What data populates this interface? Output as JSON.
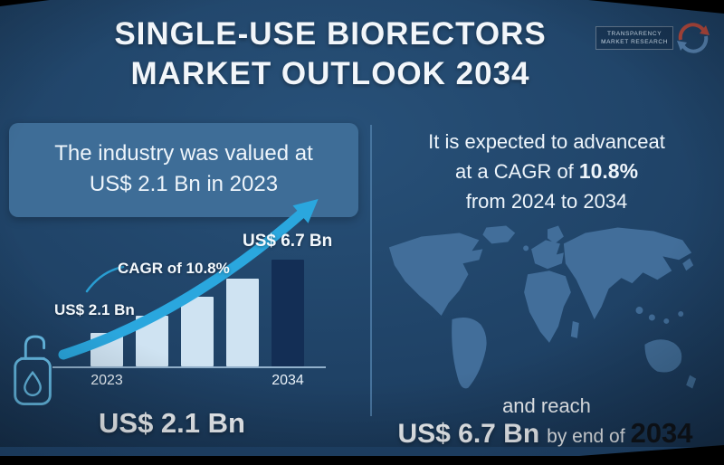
{
  "header": {
    "title_line1": "SINGLE-USE BIORECTORS",
    "title_line2": "MARKET OUTLOOK 2034"
  },
  "logo": {
    "line1": "TRANSPARENCY",
    "line2": "MARKET RESEARCH"
  },
  "left_panel": {
    "callout_line1": "The industry was valued at",
    "callout_line2": "US$ 2.1 Bn in 2023",
    "big_value": "US$ 2.1 Bn"
  },
  "right_panel": {
    "line1": "It is expected to advanceat",
    "line2_prefix": "at a CAGR of",
    "line2_bold": "10.8%",
    "line3": "from 2024 to 2034",
    "reach_text": "and reach",
    "value": "US$ 6.7 Bn",
    "value_suffix": "by end of",
    "year": "2034"
  },
  "chart_data": {
    "type": "bar",
    "categories": [
      "2023",
      "",
      "",
      "",
      "2034"
    ],
    "values": [
      2.1,
      3.2,
      4.4,
      5.5,
      6.7
    ],
    "unit": "US$ Bn",
    "title": "Single-use bioreactors market growth 2023-2034",
    "xlabel": "",
    "ylabel": "",
    "annotations": {
      "start_value": "US$ 2.1 Bn",
      "cagr": "CAGR of 10.8%",
      "end_value": "US$  6.7 Bn"
    },
    "bar_color": "#cfe3f2",
    "last_bar_color": "#132e55",
    "grid": false,
    "legend": false
  },
  "colors": {
    "background": "#1f4266",
    "callout_box": "#3e6d97",
    "arrow": "#2aa7de",
    "map": "#44719d",
    "divider": "#4e7ba6",
    "text": "#f2f6fa",
    "year_dark": "#10151c",
    "icon": "#69c1ec"
  }
}
